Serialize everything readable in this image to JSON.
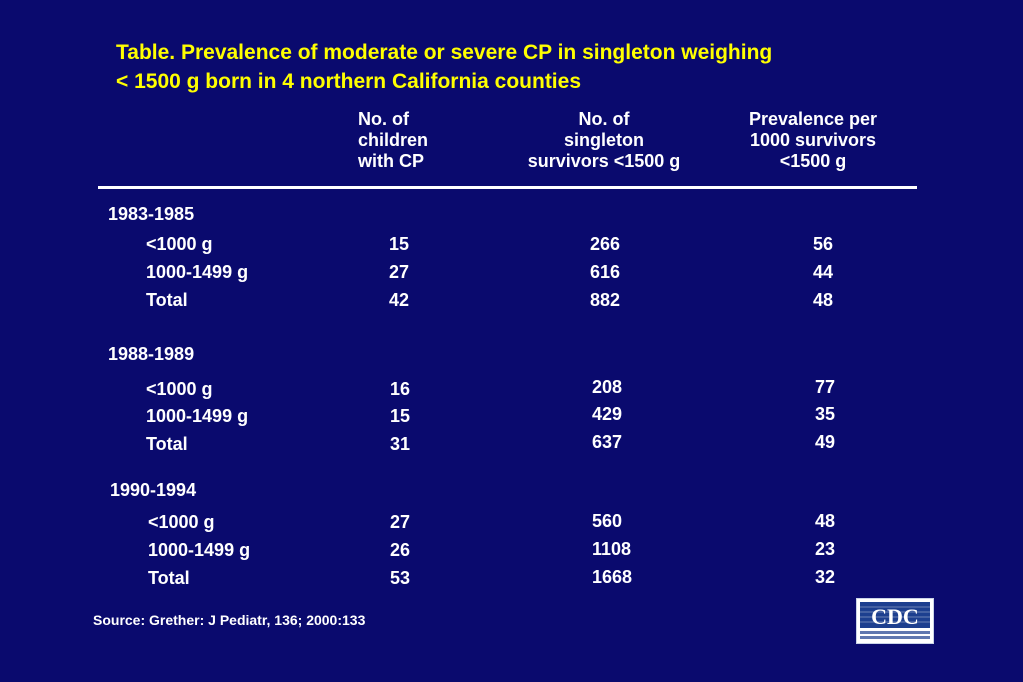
{
  "title": {
    "line1": "Table. Prevalence of moderate or severe CP in singleton weighing",
    "line2": "< 1500 g born in 4 northern California counties"
  },
  "headers": {
    "cp": "No. of\nchildren\nwith CP",
    "survivors": "No. of\nsingleton\nsurvivors <1500 g",
    "prevalence": "Prevalence per\n1000 survivors\n<1500 g"
  },
  "groups": [
    {
      "period": "1983-1985",
      "rows": [
        {
          "label": "<1000 g",
          "cp": "15",
          "survivors": "266",
          "prevalence": "56"
        },
        {
          "label": "1000-1499 g",
          "cp": "27",
          "survivors": "616",
          "prevalence": "44"
        },
        {
          "label": "Total",
          "cp": "42",
          "survivors": "882",
          "prevalence": "48"
        }
      ]
    },
    {
      "period": "1988-1989",
      "rows": [
        {
          "label": "<1000 g",
          "cp": "16",
          "survivors": "208",
          "prevalence": "77"
        },
        {
          "label": "1000-1499 g",
          "cp": "15",
          "survivors": "429",
          "prevalence": "35"
        },
        {
          "label": "Total",
          "cp": "31",
          "survivors": "637",
          "prevalence": "49"
        }
      ]
    },
    {
      "period": "1990-1994",
      "rows": [
        {
          "label": "<1000 g",
          "cp": "27",
          "survivors": "560",
          "prevalence": "48"
        },
        {
          "label": "1000-1499 g",
          "cp": "26",
          "survivors": "1108",
          "prevalence": "23"
        },
        {
          "label": "Total",
          "cp": "53",
          "survivors": "1668",
          "prevalence": "32"
        }
      ]
    }
  ],
  "source": "Source: Grether: J Pediatr, 136; 2000:133",
  "logo": {
    "text": "CDC",
    "icon": "cdc-logo-icon"
  },
  "colors": {
    "background": "#0a0a6e",
    "title": "#ffff00",
    "text": "#ffffff",
    "logo_blue": "#1d3f8f"
  }
}
